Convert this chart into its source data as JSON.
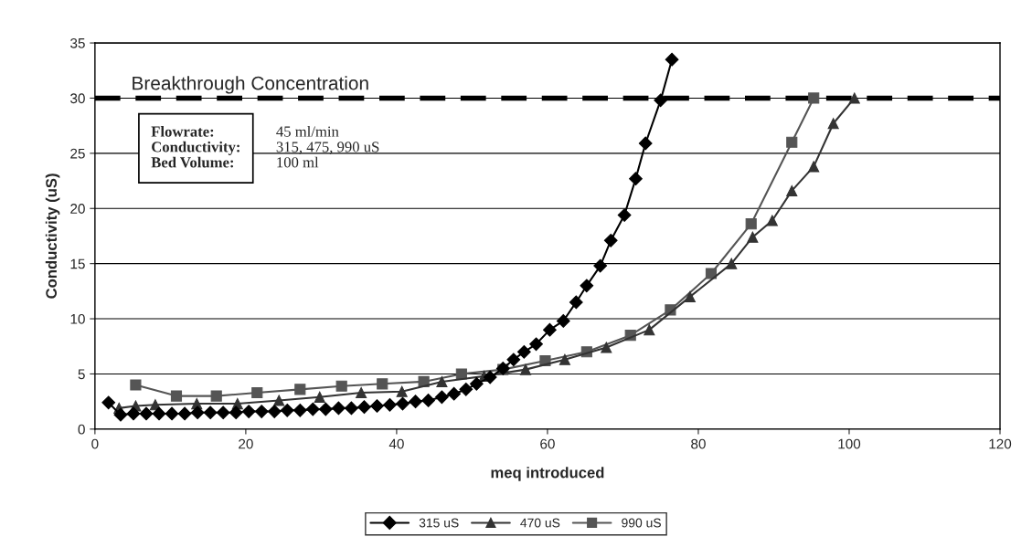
{
  "chart_data": {
    "type": "line",
    "xlabel": "meq introduced",
    "ylabel": "Conductivity (uS)",
    "xlim": [
      0,
      120
    ],
    "xticks": [
      0,
      20,
      40,
      60,
      80,
      100,
      120
    ],
    "ylim": [
      0,
      35
    ],
    "yticks": [
      0,
      5,
      10,
      15,
      20,
      25,
      30,
      35
    ],
    "grid": "y",
    "legend": "bottom",
    "line_style": "solid",
    "series": [
      {
        "name": "315 uS",
        "color": "#000000",
        "marker": "diamond",
        "x": [
          1.8,
          3.4,
          5.1,
          6.8,
          8.5,
          10.2,
          11.9,
          13.6,
          15.3,
          17.0,
          18.7,
          20.4,
          22.1,
          23.8,
          25.5,
          27.2,
          28.9,
          30.6,
          32.3,
          34.0,
          35.7,
          37.4,
          39.1,
          40.8,
          42.5,
          44.2,
          46.0,
          47.6,
          49.2,
          50.6,
          52.4,
          54.1,
          55.5,
          56.9,
          58.5,
          60.3,
          62.1,
          63.8,
          65.2,
          67.0,
          68.4,
          70.2,
          71.7,
          73.0,
          75.0,
          76.5
        ],
        "values": [
          2.4,
          1.3,
          1.4,
          1.4,
          1.4,
          1.4,
          1.4,
          1.5,
          1.5,
          1.5,
          1.5,
          1.6,
          1.6,
          1.6,
          1.7,
          1.7,
          1.8,
          1.8,
          1.9,
          1.9,
          2.0,
          2.1,
          2.2,
          2.3,
          2.5,
          2.6,
          2.9,
          3.2,
          3.6,
          4.1,
          4.7,
          5.5,
          6.3,
          7.0,
          7.7,
          9.0,
          9.8,
          11.5,
          13.0,
          14.8,
          17.1,
          19.4,
          22.7,
          25.9,
          29.8,
          33.5
        ]
      },
      {
        "name": "470 uS",
        "color": "#333333",
        "marker": "triangle",
        "x": [
          3.2,
          5.4,
          8.0,
          13.5,
          18.9,
          24.4,
          29.8,
          35.3,
          40.7,
          46.0,
          51.6,
          57.1,
          62.3,
          67.8,
          73.5,
          78.9,
          84.4,
          87.2,
          89.8,
          92.4,
          95.3,
          97.9,
          100.7
        ],
        "values": [
          1.9,
          2.1,
          2.2,
          2.3,
          2.3,
          2.6,
          2.9,
          3.3,
          3.4,
          4.3,
          4.8,
          5.4,
          6.3,
          7.4,
          9.0,
          12.0,
          15.0,
          17.4,
          18.9,
          21.6,
          23.8,
          27.7,
          30.0
        ]
      },
      {
        "name": "990 uS",
        "color": "#555555",
        "marker": "square",
        "x": [
          5.4,
          10.8,
          16.1,
          21.5,
          27.2,
          32.7,
          38.1,
          43.6,
          48.6,
          54.1,
          59.7,
          65.2,
          71.0,
          76.3,
          81.7,
          87.0,
          92.4,
          95.3
        ],
        "values": [
          4.0,
          3.0,
          3.0,
          3.3,
          3.6,
          3.9,
          4.1,
          4.3,
          5.0,
          5.4,
          6.2,
          7.0,
          8.5,
          10.8,
          14.1,
          18.6,
          26.0,
          30.0
        ]
      }
    ],
    "ref_lines": [
      {
        "axis": "y",
        "value": 30,
        "label": "Breakthrough Concentration",
        "color": "#000000",
        "line_style": "dashed"
      }
    ],
    "annotations": [
      "Flowrate: 45 ml/min",
      "Conductivity: 315, 475, 990 uS",
      "Bed Volume: 100 ml"
    ]
  }
}
